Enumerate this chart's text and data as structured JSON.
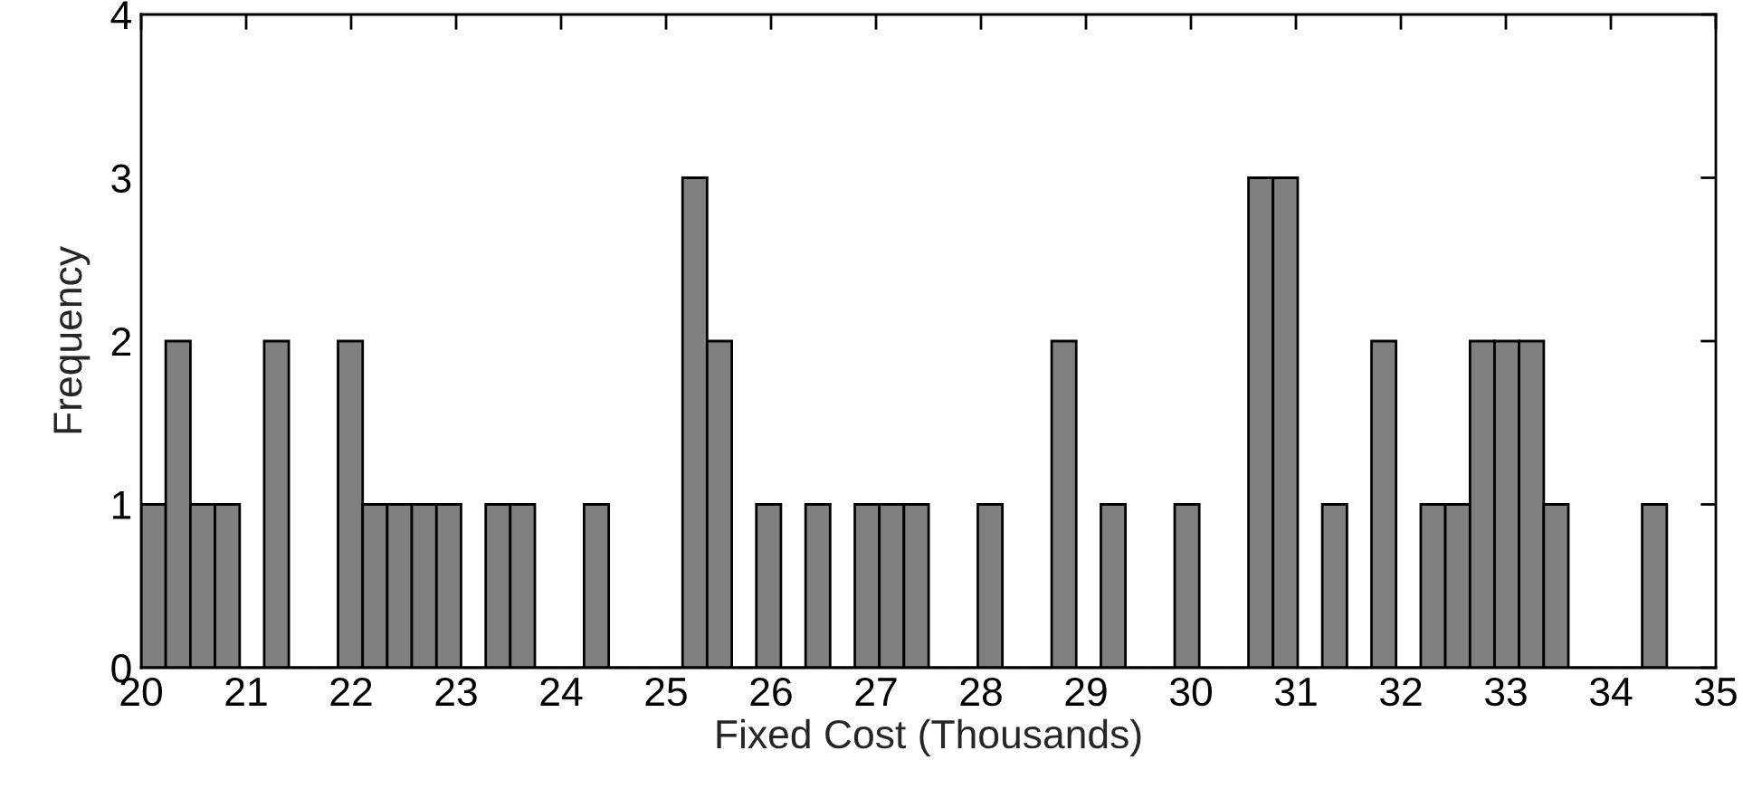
{
  "chart_data": {
    "type": "histogram",
    "xlabel": "Fixed Cost (Thousands)",
    "ylabel": "Frequency",
    "color": "#808080",
    "bins": [
      20,
      20.234,
      20.469,
      20.703,
      20.938,
      21.172,
      21.406,
      21.641,
      21.875,
      22.11,
      22.344,
      22.578,
      22.813,
      23.047,
      23.282,
      23.516,
      23.75,
      23.985,
      24.219,
      24.454,
      24.688,
      24.922,
      25.157,
      25.391,
      25.626,
      25.86,
      26.094,
      26.329,
      26.563,
      26.798,
      27.032,
      27.266,
      27.501,
      27.735,
      27.97,
      28.204,
      28.438,
      28.673,
      28.907,
      29.142,
      29.376,
      29.61,
      29.845,
      30.079,
      30.314,
      30.548,
      30.782,
      31.017,
      31.251,
      31.486,
      31.72,
      31.954,
      32.189,
      32.423,
      32.658,
      32.892,
      33.126,
      33.361,
      33.595,
      33.83,
      34.064,
      34.298,
      34.533
    ],
    "values": [
      1,
      2,
      1,
      1,
      0,
      2,
      0,
      0,
      2,
      1,
      1,
      1,
      1,
      0,
      1,
      1,
      0,
      0,
      1,
      0,
      0,
      0,
      3,
      2,
      0,
      1,
      0,
      1,
      0,
      1,
      1,
      1,
      0,
      0,
      1,
      0,
      0,
      2,
      0,
      1,
      0,
      0,
      1,
      0,
      0,
      3,
      3,
      0,
      1,
      0,
      2,
      0,
      1,
      1,
      2,
      2,
      2,
      1,
      0,
      0,
      0,
      1
    ],
    "xlim": [
      20,
      35
    ],
    "xticks": [
      20,
      21,
      22,
      23,
      24,
      25,
      26,
      27,
      28,
      29,
      30,
      31,
      32,
      33,
      34,
      35
    ],
    "ylim": [
      0,
      4
    ],
    "yticks": [
      0,
      1,
      2,
      3,
      4
    ],
    "grid": false
  }
}
